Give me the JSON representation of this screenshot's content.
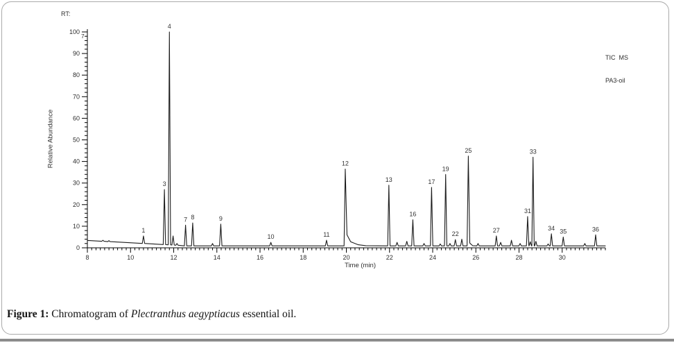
{
  "header": {
    "rt_label": "RT:",
    "stray_label": "7",
    "detector_line1": "TIC  MS",
    "detector_line2": "PA3-oil"
  },
  "chart_data": {
    "type": "line",
    "title": "",
    "xlabel": "Time (min)",
    "ylabel": "Relative Abundance",
    "xlim": [
      8,
      32
    ],
    "ylim": [
      0,
      100
    ],
    "x_ticks": [
      8,
      10,
      12,
      14,
      16,
      18,
      20,
      22,
      24,
      26,
      28,
      30
    ],
    "y_ticks": [
      0,
      10,
      20,
      30,
      40,
      50,
      60,
      70,
      80,
      90,
      100
    ],
    "x_minor_step": 0.2,
    "y_minor_step": 2,
    "grid": false,
    "legend": "none",
    "baseline": {
      "start_t": 8,
      "start_v": 3.4,
      "knee_t": 12.5,
      "knee_v": 1.0,
      "flat_v": 0.9
    },
    "peaks": [
      {
        "rt": 8.72,
        "v": 3.5,
        "label": ""
      },
      {
        "rt": 9.0,
        "v": 3.3,
        "label": ""
      },
      {
        "rt": 10.6,
        "v": 5.5,
        "label": "1"
      },
      {
        "rt": 11.57,
        "v": 27,
        "label": "3"
      },
      {
        "rt": 11.8,
        "v": 100,
        "label": "4"
      },
      {
        "rt": 11.97,
        "v": 5.5,
        "label": ""
      },
      {
        "rt": 12.15,
        "v": 2,
        "label": ""
      },
      {
        "rt": 12.55,
        "v": 10.5,
        "label": "7"
      },
      {
        "rt": 12.88,
        "v": 11.5,
        "label": "8"
      },
      {
        "rt": 13.8,
        "v": 2,
        "label": ""
      },
      {
        "rt": 14.18,
        "v": 11,
        "label": "9"
      },
      {
        "rt": 16.5,
        "v": 2.5,
        "label": "10"
      },
      {
        "rt": 19.08,
        "v": 3.5,
        "label": "11"
      },
      {
        "rt": 19.95,
        "v": 36.5,
        "label": "12",
        "tail": [
          [
            0.08,
            6
          ],
          [
            0.25,
            2.8
          ],
          [
            0.6,
            1.4
          ],
          [
            0.95,
            1.0
          ]
        ]
      },
      {
        "rt": 21.97,
        "v": 29,
        "label": "13"
      },
      {
        "rt": 22.35,
        "v": 2.5,
        "label": ""
      },
      {
        "rt": 22.8,
        "v": 3,
        "label": ""
      },
      {
        "rt": 23.08,
        "v": 13,
        "label": "16"
      },
      {
        "rt": 23.6,
        "v": 2,
        "label": ""
      },
      {
        "rt": 23.95,
        "v": 28,
        "label": "17"
      },
      {
        "rt": 24.35,
        "v": 1.8,
        "label": ""
      },
      {
        "rt": 24.6,
        "v": 34,
        "label": "19"
      },
      {
        "rt": 24.8,
        "v": 2,
        "label": ""
      },
      {
        "rt": 25.05,
        "v": 3.8,
        "label": "22"
      },
      {
        "rt": 25.35,
        "v": 4,
        "label": ""
      },
      {
        "rt": 25.65,
        "v": 42.5,
        "label": "25",
        "tail": [
          [
            0.07,
            2.2
          ],
          [
            0.2,
            1.0
          ]
        ]
      },
      {
        "rt": 26.1,
        "v": 2,
        "label": ""
      },
      {
        "rt": 26.95,
        "v": 5.5,
        "label": "27"
      },
      {
        "rt": 27.15,
        "v": 2.5,
        "label": ""
      },
      {
        "rt": 27.65,
        "v": 3.5,
        "label": ""
      },
      {
        "rt": 28.05,
        "v": 2,
        "label": ""
      },
      {
        "rt": 28.4,
        "v": 14.5,
        "label": "31"
      },
      {
        "rt": 28.52,
        "v": 2.8,
        "label": ""
      },
      {
        "rt": 28.65,
        "v": 42,
        "label": "33"
      },
      {
        "rt": 28.78,
        "v": 3,
        "label": ""
      },
      {
        "rt": 29.35,
        "v": 1.8,
        "label": ""
      },
      {
        "rt": 29.5,
        "v": 6.5,
        "label": "34"
      },
      {
        "rt": 30.05,
        "v": 5,
        "label": "35"
      },
      {
        "rt": 31.05,
        "v": 2,
        "label": ""
      },
      {
        "rt": 31.55,
        "v": 6,
        "label": "36"
      }
    ]
  },
  "caption": {
    "prefix": "Figure 1:",
    "body": " Chromatogram of ",
    "species_italic": "Plectranthus aegyptiacus",
    "suffix": " essential oil."
  },
  "colors": {
    "trace": "#1c1c1c",
    "axis": "#000000",
    "tick_text": "#2e2e2e",
    "peak_label_text": "#333333",
    "border": "#a9a9a9",
    "bottom_bar": "#8c8c8c"
  }
}
